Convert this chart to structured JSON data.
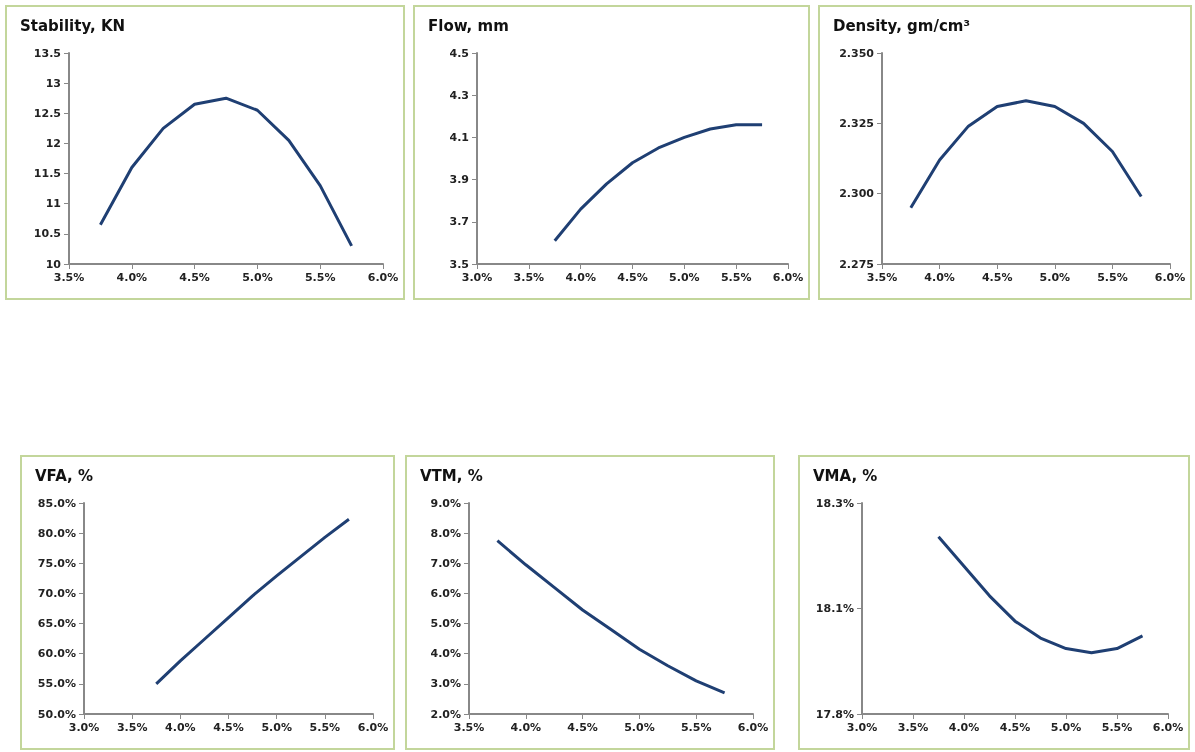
{
  "chart_data": [
    {
      "type": "line",
      "title": "Stability, KN",
      "x": [
        3.75,
        4.0,
        4.25,
        4.5,
        4.75,
        5.0,
        5.25,
        5.5,
        5.75
      ],
      "values": [
        10.65,
        11.6,
        12.25,
        12.65,
        12.75,
        12.55,
        12.05,
        11.3,
        10.3
      ],
      "color": "#1f3f73",
      "xlim": [
        3.5,
        6.0
      ],
      "xticks": [
        {
          "value": 3.5,
          "label": "3.5%"
        },
        {
          "value": 4.0,
          "label": "4.0%"
        },
        {
          "value": 4.5,
          "label": "4.5%"
        },
        {
          "value": 5.0,
          "label": "5.0%"
        },
        {
          "value": 5.5,
          "label": "5.5%"
        },
        {
          "value": 6.0,
          "label": "6.0%"
        }
      ],
      "ylim": [
        10,
        13.5
      ],
      "yticks": [
        10,
        10.5,
        11,
        11.5,
        12,
        12.5,
        13,
        13.5
      ],
      "grid": false,
      "marker": "none"
    },
    {
      "type": "line",
      "title": "Flow, mm",
      "x": [
        3.75,
        4.0,
        4.25,
        4.5,
        4.75,
        5.0,
        5.25,
        5.5,
        5.75
      ],
      "values": [
        3.61,
        3.76,
        3.88,
        3.98,
        4.05,
        4.1,
        4.14,
        4.16,
        4.16
      ],
      "color": "#1f3f73",
      "xlim": [
        3.0,
        6.0
      ],
      "xticks": [
        {
          "value": 3.0,
          "label": "3.0%"
        },
        {
          "value": 3.5,
          "label": "3.5%"
        },
        {
          "value": 4.0,
          "label": "4.0%"
        },
        {
          "value": 4.5,
          "label": "4.5%"
        },
        {
          "value": 5.0,
          "label": "5.0%"
        },
        {
          "value": 5.5,
          "label": "5.5%"
        },
        {
          "value": 6.0,
          "label": "6.0%"
        }
      ],
      "ylim": [
        3.5,
        4.5
      ],
      "yticks": [
        3.5,
        3.7,
        3.9,
        4.1,
        4.3,
        4.5
      ],
      "grid": false,
      "marker": "none"
    },
    {
      "type": "line",
      "title": "Density, gm/cm³",
      "x": [
        3.75,
        4.0,
        4.25,
        4.5,
        4.75,
        5.0,
        5.25,
        5.5,
        5.75
      ],
      "values": [
        2.295,
        2.312,
        2.324,
        2.331,
        2.333,
        2.331,
        2.325,
        2.315,
        2.299
      ],
      "color": "#1f3f73",
      "xlim": [
        3.5,
        6.0
      ],
      "xticks": [
        {
          "value": 3.5,
          "label": "3.5%"
        },
        {
          "value": 4.0,
          "label": "4.0%"
        },
        {
          "value": 4.5,
          "label": "4.5%"
        },
        {
          "value": 5.0,
          "label": "5.0%"
        },
        {
          "value": 5.5,
          "label": "5.5%"
        },
        {
          "value": 6.0,
          "label": "6.0%"
        }
      ],
      "ylim": [
        2.275,
        2.35
      ],
      "yticks": [
        {
          "value": 2.275,
          "label": "2.275"
        },
        {
          "value": 2.3,
          "label": "2.300"
        },
        {
          "value": 2.325,
          "label": "2.325"
        },
        {
          "value": 2.35,
          "label": "2.350"
        }
      ],
      "grid": false,
      "marker": "none"
    },
    {
      "type": "line",
      "title": "VFA, %",
      "x": [
        3.75,
        4.0,
        4.25,
        4.5,
        4.75,
        5.0,
        5.25,
        5.5,
        5.75
      ],
      "values": [
        55.0,
        58.8,
        62.4,
        66.0,
        69.6,
        72.9,
        76.1,
        79.3,
        82.3
      ],
      "color": "#1f3f73",
      "xlim": [
        3.0,
        6.0
      ],
      "xticks": [
        {
          "value": 3.0,
          "label": "3.0%"
        },
        {
          "value": 3.5,
          "label": "3.5%"
        },
        {
          "value": 4.0,
          "label": "4.0%"
        },
        {
          "value": 4.5,
          "label": "4.5%"
        },
        {
          "value": 5.0,
          "label": "5.0%"
        },
        {
          "value": 5.5,
          "label": "5.5%"
        },
        {
          "value": 6.0,
          "label": "6.0%"
        }
      ],
      "ylim": [
        50,
        85
      ],
      "yticks": [
        {
          "value": 50,
          "label": "50.0%"
        },
        {
          "value": 55,
          "label": "55.0%"
        },
        {
          "value": 60,
          "label": "60.0%"
        },
        {
          "value": 65,
          "label": "65.0%"
        },
        {
          "value": 70,
          "label": "70.0%"
        },
        {
          "value": 75,
          "label": "75.0%"
        },
        {
          "value": 80,
          "label": "80.0%"
        },
        {
          "value": 85,
          "label": "85.0%"
        }
      ],
      "grid": false,
      "marker": "none"
    },
    {
      "type": "line",
      "title": "VTM, %",
      "x": [
        3.75,
        4.0,
        4.25,
        4.5,
        4.75,
        5.0,
        5.25,
        5.5,
        5.75
      ],
      "values": [
        7.75,
        6.95,
        6.2,
        5.45,
        4.8,
        4.15,
        3.6,
        3.1,
        2.7
      ],
      "color": "#1f3f73",
      "xlim": [
        3.5,
        6.0
      ],
      "xticks": [
        {
          "value": 3.5,
          "label": "3.5%"
        },
        {
          "value": 4.0,
          "label": "4.0%"
        },
        {
          "value": 4.5,
          "label": "4.5%"
        },
        {
          "value": 5.0,
          "label": "5.0%"
        },
        {
          "value": 5.5,
          "label": "5.5%"
        },
        {
          "value": 6.0,
          "label": "6.0%"
        }
      ],
      "ylim": [
        2,
        9
      ],
      "yticks": [
        {
          "value": 2,
          "label": "2.0%"
        },
        {
          "value": 3,
          "label": "3.0%"
        },
        {
          "value": 4,
          "label": "4.0%"
        },
        {
          "value": 5,
          "label": "5.0%"
        },
        {
          "value": 6,
          "label": "6.0%"
        },
        {
          "value": 7,
          "label": "7.0%"
        },
        {
          "value": 8,
          "label": "8.0%"
        },
        {
          "value": 9,
          "label": "9.0%"
        }
      ],
      "grid": false,
      "marker": "none"
    },
    {
      "type": "line",
      "title": "VMA, %",
      "x": [
        3.75,
        4.0,
        4.25,
        4.5,
        4.75,
        5.0,
        5.25,
        5.5,
        5.75
      ],
      "values": [
        18.22,
        18.15,
        18.08,
        18.02,
        17.98,
        17.955,
        17.945,
        17.955,
        17.985
      ],
      "color": "#1f3f73",
      "xlim": [
        3.0,
        6.0
      ],
      "xticks": [
        {
          "value": 3.0,
          "label": "3.0%"
        },
        {
          "value": 3.5,
          "label": "3.5%"
        },
        {
          "value": 4.0,
          "label": "4.0%"
        },
        {
          "value": 4.5,
          "label": "4.5%"
        },
        {
          "value": 5.0,
          "label": "5.0%"
        },
        {
          "value": 5.5,
          "label": "5.5%"
        },
        {
          "value": 6.0,
          "label": "6.0%"
        }
      ],
      "ylim": [
        17.8,
        18.3
      ],
      "yticks": [
        {
          "value": 17.8,
          "label": "17.8%"
        },
        {
          "value": 18.05,
          "label": "18.1%"
        },
        {
          "value": 18.3,
          "label": "18.3%"
        }
      ],
      "grid": false,
      "marker": "none"
    }
  ]
}
